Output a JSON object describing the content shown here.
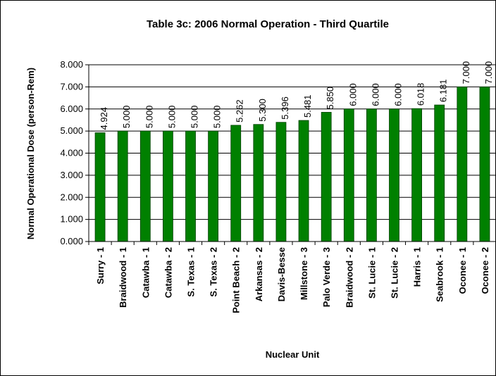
{
  "chart_data": {
    "type": "bar",
    "title": "Table 3c: 2006 Normal Operation -  Third Quartile",
    "x_label": "Nuclear Unit",
    "y_label": "Normal Operational Dose (person-Rem)",
    "categories": [
      "Surry - 1",
      "Braidwood - 1",
      "Catawba - 1",
      "Catawba - 2",
      "S. Texas - 1",
      "S. Texas - 2",
      "Point Beach - 2",
      "Arkansas - 2",
      "Davis-Besse",
      "Millstone - 3",
      "Palo Verde - 3",
      "Braidwood - 2",
      "St. Lucie - 1",
      "St. Lucie - 2",
      "Harris - 1",
      "Seabrook - 1",
      "Oconee - 1",
      "Oconee - 2"
    ],
    "values": [
      4.924,
      5,
      5,
      5,
      5,
      5,
      5.262,
      5.3,
      5.396,
      5.481,
      5.85,
      6,
      6,
      6,
      6.018,
      6.181,
      7,
      7
    ],
    "value_labels": [
      "4.924",
      "5.000",
      "5.000",
      "5.000",
      "5.000",
      "5.000",
      "5.262",
      "5.300",
      "5.396",
      "5.481",
      "5.850",
      "6.000",
      "6.000",
      "6.000",
      "6.018",
      "6.181",
      "7.000",
      "7.000"
    ],
    "color": "#008000",
    "ylim": [
      0,
      8
    ],
    "yticks": [
      {
        "value": 0,
        "label": "0.000"
      },
      {
        "value": 1,
        "label": "1.000"
      },
      {
        "value": 2,
        "label": "2.000"
      },
      {
        "value": 3,
        "label": "3.000"
      },
      {
        "value": 4,
        "label": "4.000"
      },
      {
        "value": 5,
        "label": "5.000"
      },
      {
        "value": 6,
        "label": "6.000"
      },
      {
        "value": 7,
        "label": "7.000"
      },
      {
        "value": 8,
        "label": "8.000"
      }
    ],
    "grid": true
  }
}
